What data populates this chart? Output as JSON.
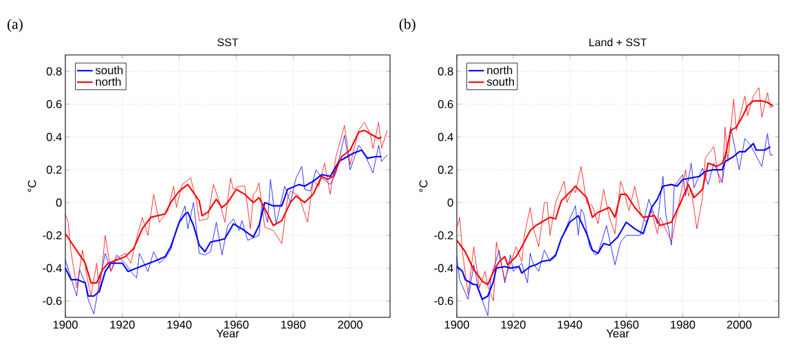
{
  "chart_data": [
    {
      "type": "line",
      "title": "SST",
      "xlabel": "Year",
      "ylabel": "°C",
      "annotations": [
        "(a)"
      ],
      "xlim": [
        1900,
        2014
      ],
      "ylim": [
        -0.7,
        0.9
      ],
      "xticks": [
        1900,
        1920,
        1940,
        1960,
        1980,
        2000
      ],
      "yticks": [
        -0.6,
        -0.4,
        -0.2,
        0,
        0.2,
        0.4,
        0.6,
        0.8
      ],
      "grid": true,
      "legend": "top left",
      "series": [
        {
          "color": "#0000ff",
          "x": [
            1900,
            1902,
            1904,
            1905,
            1907,
            1908,
            1910,
            1912,
            1914,
            1916,
            1918,
            1921,
            1923,
            1925,
            1926,
            1929,
            1931,
            1933,
            1935,
            1937,
            1939,
            1942,
            1943,
            1945,
            1947,
            1949,
            1951,
            1953,
            1955,
            1957,
            1959,
            1961,
            1962,
            1964,
            1968,
            1969,
            1971,
            1972,
            1974,
            1977,
            1979,
            1981,
            1983,
            1984,
            1986,
            1988,
            1990,
            1993,
            1995,
            1998,
            2000,
            2003,
            2005,
            2008,
            2010,
            2011,
            2013
          ],
          "values": [
            -0.35,
            -0.46,
            -0.57,
            -0.41,
            -0.49,
            -0.59,
            -0.68,
            -0.48,
            -0.31,
            -0.42,
            -0.32,
            -0.37,
            -0.42,
            -0.46,
            -0.31,
            -0.42,
            -0.3,
            -0.37,
            -0.34,
            -0.29,
            -0.16,
            -0.02,
            -0.16,
            0.0,
            -0.31,
            -0.32,
            -0.3,
            -0.12,
            -0.32,
            -0.14,
            -0.1,
            -0.17,
            -0.11,
            -0.23,
            -0.2,
            0.0,
            -0.12,
            0.14,
            -0.13,
            0.1,
            0.0,
            0.15,
            0.22,
            0.08,
            0.07,
            0.2,
            0.15,
            0.11,
            0.18,
            0.41,
            0.2,
            0.35,
            0.3,
            0.18,
            0.35,
            0.25,
            0.29
          ]
        },
        {
          "color": "#ff0000",
          "x": [
            1900,
            1901,
            1902,
            1904,
            1906,
            1908,
            1909,
            1911,
            1912,
            1914,
            1916,
            1918,
            1921,
            1923,
            1925,
            1927,
            1929,
            1931,
            1933,
            1936,
            1938,
            1939,
            1941,
            1944,
            1946,
            1947,
            1950,
            1952,
            1954,
            1956,
            1958,
            1959,
            1961,
            1963,
            1965,
            1966,
            1967,
            1968,
            1970,
            1973,
            1976,
            1978,
            1979,
            1982,
            1985,
            1987,
            1989,
            1991,
            1993,
            1995,
            1998,
            2000,
            2003,
            2005,
            2007,
            2008,
            2010,
            2011,
            2013
          ],
          "values": [
            -0.07,
            -0.12,
            -0.3,
            -0.52,
            -0.29,
            -0.49,
            -0.57,
            -0.37,
            -0.55,
            -0.2,
            -0.42,
            -0.34,
            -0.31,
            -0.37,
            -0.22,
            -0.09,
            -0.2,
            0.05,
            -0.12,
            -0.05,
            0.1,
            -0.03,
            0.11,
            0.15,
            0.01,
            -0.11,
            -0.1,
            0.11,
            0.01,
            -0.12,
            0.15,
            0.08,
            0.1,
            0.1,
            -0.16,
            0.05,
            0.07,
            0.12,
            -0.15,
            -0.17,
            -0.25,
            0.03,
            0.07,
            0.04,
            -0.12,
            0.13,
            0.1,
            0.24,
            0.05,
            0.28,
            0.47,
            0.23,
            0.44,
            0.49,
            0.42,
            0.33,
            0.49,
            0.33,
            0.44
          ]
        },
        {
          "name": "south",
          "color": "#0000ff",
          "x": [
            1900,
            1902,
            1904,
            1907,
            1908,
            1910,
            1912,
            1914,
            1916,
            1920,
            1922,
            1925,
            1928,
            1931,
            1935,
            1937,
            1940,
            1942,
            1943,
            1945,
            1947,
            1949,
            1951,
            1954,
            1956,
            1959,
            1962,
            1966,
            1968,
            1970,
            1973,
            1976,
            1978,
            1982,
            1984,
            1987,
            1990,
            1993,
            1996,
            1999,
            2001,
            2004,
            2006,
            2009,
            2011
          ],
          "values": [
            -0.4,
            -0.47,
            -0.47,
            -0.49,
            -0.57,
            -0.57,
            -0.54,
            -0.42,
            -0.37,
            -0.37,
            -0.42,
            -0.4,
            -0.38,
            -0.36,
            -0.33,
            -0.27,
            -0.12,
            -0.07,
            -0.06,
            -0.14,
            -0.26,
            -0.3,
            -0.24,
            -0.23,
            -0.22,
            -0.13,
            -0.16,
            -0.21,
            -0.14,
            0.0,
            -0.02,
            -0.02,
            0.08,
            0.11,
            0.1,
            0.13,
            0.17,
            0.16,
            0.25,
            0.28,
            0.3,
            0.32,
            0.27,
            0.28,
            0.28
          ]
        },
        {
          "name": "north",
          "color": "#ff0000",
          "x": [
            1900,
            1907,
            1909,
            1911,
            1913,
            1915,
            1918,
            1921,
            1924,
            1927,
            1930,
            1935,
            1937,
            1940,
            1943,
            1947,
            1948,
            1950,
            1953,
            1955,
            1957,
            1960,
            1963,
            1966,
            1968,
            1971,
            1973,
            1976,
            1979,
            1981,
            1984,
            1987,
            1990,
            1992,
            1994,
            1997,
            2000,
            2003,
            2005,
            2008,
            2010,
            2011
          ],
          "values": [
            -0.19,
            -0.37,
            -0.49,
            -0.49,
            -0.41,
            -0.37,
            -0.35,
            -0.33,
            -0.28,
            -0.16,
            -0.09,
            -0.07,
            0.0,
            0.07,
            0.11,
            0.01,
            -0.08,
            -0.06,
            0.02,
            -0.03,
            0.0,
            0.08,
            0.05,
            0.0,
            0.03,
            -0.07,
            -0.14,
            -0.11,
            0.0,
            0.04,
            0.0,
            0.05,
            0.16,
            0.14,
            0.16,
            0.28,
            0.32,
            0.43,
            0.44,
            0.41,
            0.39,
            0.4
          ]
        }
      ]
    },
    {
      "type": "line",
      "title": "Land + SST",
      "xlabel": "Year",
      "ylabel": "°C",
      "annotations": [
        "(b)"
      ],
      "xlim": [
        1900,
        2014
      ],
      "ylim": [
        -0.7,
        0.9
      ],
      "xticks": [
        1900,
        1920,
        1940,
        1960,
        1980,
        2000
      ],
      "yticks": [
        -0.6,
        -0.4,
        -0.2,
        0,
        0.2,
        0.4,
        0.6,
        0.8
      ],
      "grid": true,
      "legend": "top left",
      "series": [
        {
          "color": "#0000ff",
          "x": [
            1900,
            1901,
            1904,
            1906,
            1908,
            1911,
            1912,
            1915,
            1917,
            1919,
            1920,
            1923,
            1925,
            1926,
            1927,
            1929,
            1931,
            1933,
            1935,
            1937,
            1940,
            1942,
            1943,
            1944,
            1945,
            1947,
            1949,
            1950,
            1953,
            1955,
            1956,
            1958,
            1960,
            1962,
            1965,
            1968,
            1971,
            1973,
            1974,
            1976,
            1977,
            1980,
            1981,
            1983,
            1984,
            1987,
            1989,
            1991,
            1994,
            1995,
            1997,
            2000,
            2002,
            2004,
            2008,
            2010,
            2011,
            2012
          ],
          "values": [
            -0.33,
            -0.47,
            -0.59,
            -0.38,
            -0.55,
            -0.69,
            -0.46,
            -0.29,
            -0.49,
            -0.32,
            -0.42,
            -0.37,
            -0.49,
            -0.31,
            -0.37,
            -0.42,
            -0.29,
            -0.36,
            -0.33,
            -0.22,
            -0.1,
            -0.02,
            -0.2,
            -0.04,
            -0.07,
            -0.27,
            -0.32,
            -0.31,
            -0.14,
            -0.3,
            -0.38,
            -0.24,
            -0.2,
            -0.2,
            -0.2,
            0.02,
            -0.13,
            0.16,
            -0.07,
            -0.26,
            0.1,
            0.17,
            0.04,
            0.24,
            0.09,
            0.21,
            0.11,
            0.24,
            0.12,
            0.25,
            0.46,
            0.2,
            0.39,
            0.35,
            0.22,
            0.42,
            0.29,
            0.29
          ]
        },
        {
          "color": "#ff0000",
          "x": [
            1900,
            1901,
            1902,
            1904,
            1906,
            1908,
            1910,
            1911,
            1913,
            1914,
            1917,
            1919,
            1921,
            1923,
            1924,
            1926,
            1927,
            1929,
            1931,
            1932,
            1933,
            1935,
            1938,
            1939,
            1941,
            1942,
            1944,
            1946,
            1948,
            1950,
            1952,
            1954,
            1956,
            1958,
            1959,
            1961,
            1963,
            1965,
            1967,
            1969,
            1971,
            1972,
            1976,
            1978,
            1981,
            1982,
            1983,
            1985,
            1987,
            1988,
            1991,
            1993,
            1994,
            1995,
            1996,
            1998,
            1999,
            2002,
            2003,
            2005,
            2007,
            2008,
            2010,
            2011,
            2012
          ],
          "values": [
            -0.16,
            -0.09,
            -0.3,
            -0.56,
            -0.27,
            -0.52,
            -0.42,
            -0.51,
            -0.6,
            -0.24,
            -0.47,
            -0.37,
            -0.27,
            -0.36,
            -0.19,
            -0.03,
            -0.15,
            -0.27,
            0.0,
            0.0,
            -0.2,
            0.0,
            0.13,
            0.0,
            0.08,
            0.06,
            0.22,
            0.0,
            -0.02,
            -0.13,
            0.08,
            -0.09,
            -0.19,
            0.13,
            0.08,
            -0.05,
            0.1,
            -0.06,
            -0.12,
            -0.05,
            -0.19,
            -0.09,
            -0.24,
            -0.06,
            0.2,
            0.04,
            0.08,
            -0.16,
            0.03,
            0.27,
            0.34,
            0.12,
            0.14,
            0.46,
            0.25,
            0.63,
            0.44,
            0.65,
            0.53,
            0.65,
            0.7,
            0.52,
            0.67,
            0.58,
            0.59
          ]
        },
        {
          "name": "north",
          "color": "#0000ff",
          "x": [
            1900,
            1902,
            1903,
            1904,
            1906,
            1907,
            1909,
            1911,
            1913,
            1914,
            1917,
            1919,
            1922,
            1923,
            1926,
            1928,
            1930,
            1933,
            1935,
            1937,
            1940,
            1943,
            1946,
            1948,
            1950,
            1952,
            1954,
            1957,
            1960,
            1963,
            1966,
            1969,
            1971,
            1973,
            1976,
            1978,
            1980,
            1983,
            1986,
            1988,
            1991,
            1994,
            1995,
            1998,
            2000,
            2002,
            2005,
            2006,
            2009,
            2011
          ],
          "values": [
            -0.39,
            -0.42,
            -0.47,
            -0.48,
            -0.5,
            -0.5,
            -0.59,
            -0.57,
            -0.48,
            -0.4,
            -0.39,
            -0.4,
            -0.39,
            -0.43,
            -0.39,
            -0.38,
            -0.36,
            -0.35,
            -0.32,
            -0.22,
            -0.12,
            -0.08,
            -0.19,
            -0.29,
            -0.31,
            -0.25,
            -0.26,
            -0.21,
            -0.12,
            -0.16,
            -0.19,
            -0.03,
            0.02,
            0.1,
            0.11,
            0.1,
            0.14,
            0.15,
            0.16,
            0.19,
            0.2,
            0.2,
            0.25,
            0.28,
            0.31,
            0.31,
            0.36,
            0.32,
            0.32,
            0.34
          ]
        },
        {
          "name": "south",
          "color": "#ff0000",
          "x": [
            1900,
            1903,
            1906,
            1907,
            1909,
            1911,
            1913,
            1915,
            1917,
            1918,
            1921,
            1923,
            1926,
            1928,
            1930,
            1933,
            1935,
            1937,
            1941,
            1942,
            1946,
            1948,
            1950,
            1954,
            1956,
            1958,
            1960,
            1963,
            1966,
            1970,
            1972,
            1976,
            1979,
            1982,
            1984,
            1987,
            1989,
            1992,
            1994,
            1995,
            1997,
            1999,
            2001,
            2003,
            2005,
            2008,
            2010,
            2012
          ],
          "values": [
            -0.23,
            -0.3,
            -0.41,
            -0.43,
            -0.48,
            -0.5,
            -0.42,
            -0.36,
            -0.33,
            -0.38,
            -0.33,
            -0.27,
            -0.17,
            -0.14,
            -0.12,
            -0.09,
            -0.1,
            0.01,
            0.08,
            0.1,
            0.03,
            -0.09,
            -0.06,
            -0.03,
            -0.09,
            0.05,
            0.05,
            -0.03,
            -0.09,
            -0.08,
            -0.14,
            -0.12,
            -0.01,
            0.11,
            0.03,
            0.08,
            0.24,
            0.22,
            0.24,
            0.28,
            0.44,
            0.46,
            0.52,
            0.59,
            0.62,
            0.62,
            0.61,
            0.59
          ]
        }
      ]
    }
  ]
}
